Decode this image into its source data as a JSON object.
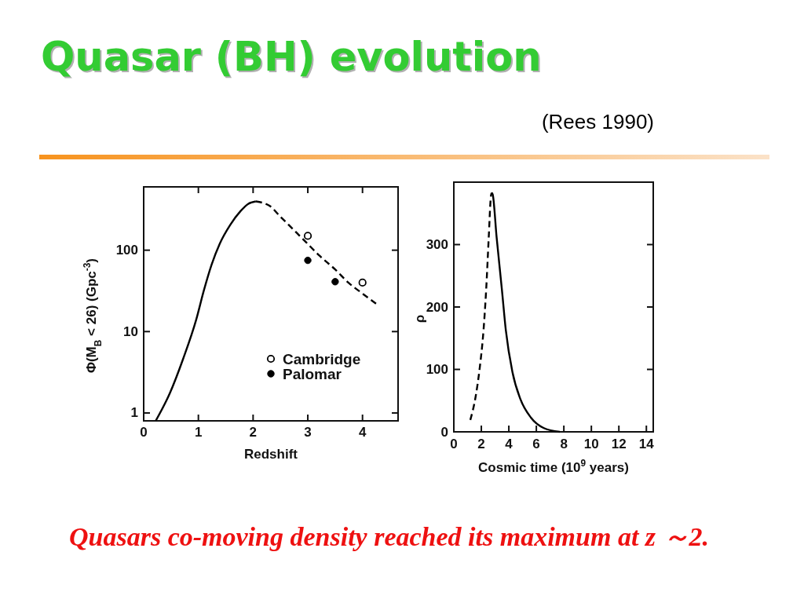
{
  "chart_data": [
    {
      "type": "line",
      "title": "Quasar (BH) evolution",
      "annotations": [
        "(Rees 1990)",
        "Quasars co-moving density reached its maximum at z ～2."
      ],
      "xlabel": "Redshift",
      "ylabel": "Φ(M$_{B}$ < 26) (Gpc$^{-3}$)",
      "xlim": [
        0,
        4.65
      ],
      "xticks": [
        0,
        1,
        2,
        3,
        4
      ],
      "ylim": [
        0.8,
        600
      ],
      "yticks": [
        1,
        10,
        100
      ],
      "log": true,
      "legend": "bottom right",
      "series": [
        {
          "color": "#000000",
          "line_style": "solid",
          "x": [
            0.22,
            0.48,
            0.72,
            0.96,
            1.1,
            1.24,
            1.39,
            1.58,
            1.77,
            1.91,
            2.05
          ],
          "values": [
            0.8,
            1.76,
            4.6,
            14,
            32,
            66,
            120,
            204,
            302,
            371,
            398
          ]
        },
        {
          "color": "#000000",
          "line_style": "dashed",
          "x": [
            2.05,
            2.3,
            2.49,
            2.73,
            2.97,
            3.21,
            3.5,
            3.74,
            3.98,
            4.25
          ],
          "values": [
            398,
            352,
            262,
            181,
            125,
            86,
            58,
            40,
            30,
            22
          ]
        },
        {
          "type": "scatter",
          "name": "Cambridge",
          "color": "#000000",
          "marker": "circle",
          "x": [
            3,
            4
          ],
          "values": [
            150,
            40
          ]
        },
        {
          "type": "scatter",
          "name": "Palomar",
          "color": "#000000",
          "marker": "circle",
          "x": [
            3,
            3.5
          ],
          "values": [
            75,
            41
          ]
        }
      ]
    },
    {
      "type": "line",
      "xlabel": "Cosmic time (10$^{9}$ years)",
      "ylabel": "ρ",
      "xlim": [
        0,
        14.5
      ],
      "xticks": [
        0,
        2,
        4,
        6,
        8,
        10,
        12,
        14
      ],
      "ylim": [
        0,
        400
      ],
      "yticks": [
        0,
        100,
        200,
        300
      ],
      "series": [
        {
          "color": "#000000",
          "line_style": "dashed",
          "x": [
            1.2,
            1.59,
            1.87,
            2.16,
            2.35,
            2.54,
            2.69,
            2.75
          ],
          "values": [
            19,
            57,
            100,
            163,
            227,
            312,
            376,
            383
          ]
        },
        {
          "color": "#000000",
          "line_style": "solid",
          "x": [
            2.75,
            2.83,
            3.11,
            3.5,
            3.78,
            4.26,
            4.83,
            5.6,
            6.55,
            7.7
          ],
          "values": [
            383,
            380,
            312,
            227,
            163,
            96,
            53,
            23,
            6,
            0
          ]
        }
      ]
    }
  ]
}
